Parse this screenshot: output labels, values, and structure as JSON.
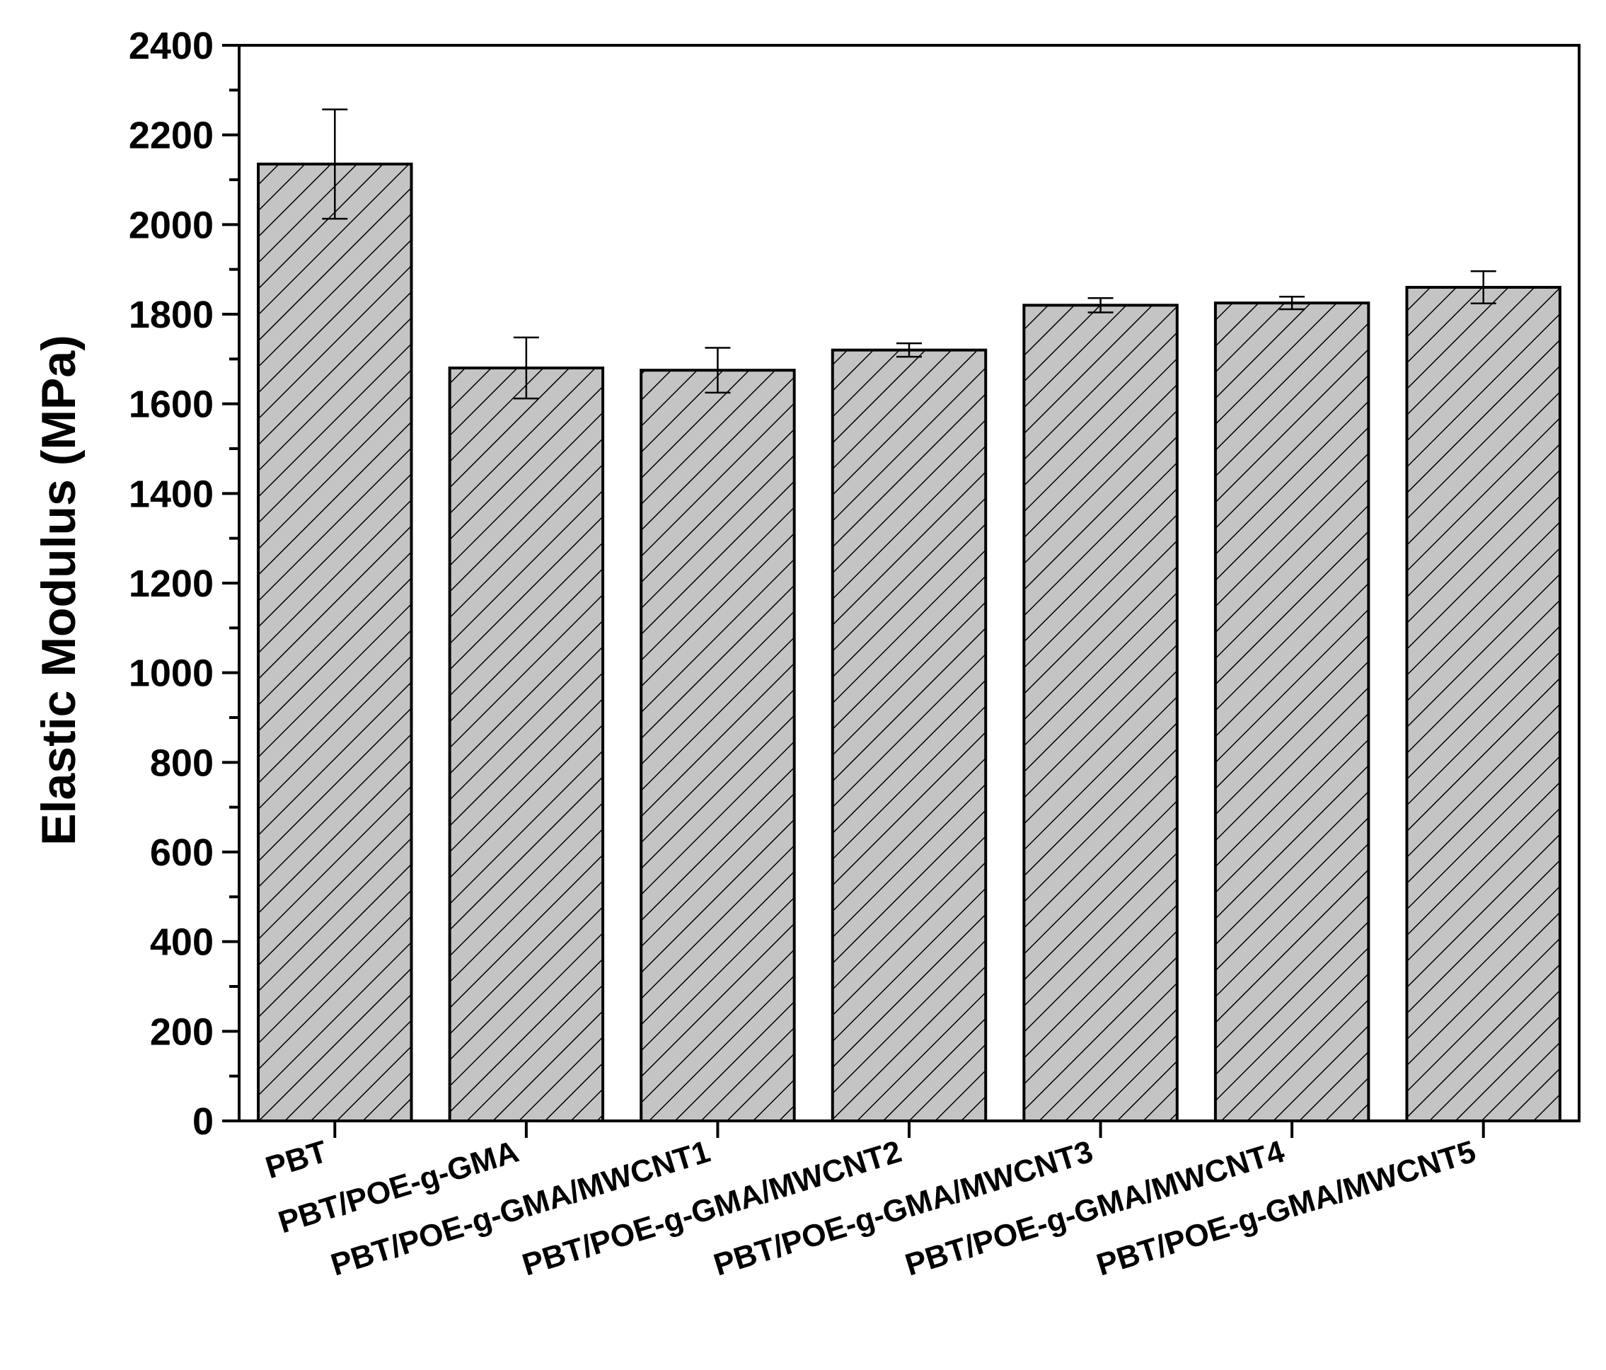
{
  "chart_data": {
    "type": "bar",
    "title": "",
    "xlabel": "",
    "ylabel": "Elastic Modulus (MPa)",
    "ylim": [
      0,
      2400
    ],
    "yticks": [
      0,
      200,
      400,
      600,
      800,
      1000,
      1200,
      1400,
      1600,
      1800,
      2000,
      2200,
      2400
    ],
    "y_minor_step": 100,
    "grid": false,
    "legend": "none",
    "categories": [
      "PBT",
      "PBT/POE-g-GMA",
      "PBT/POE-g-GMA/MWCNT1",
      "PBT/POE-g-GMA/MWCNT2",
      "PBT/POE-g-GMA/MWCNT3",
      "PBT/POE-g-GMA/MWCNT4",
      "PBT/POE-g-GMA/MWCNT5"
    ],
    "values": [
      2135,
      1680,
      1675,
      1720,
      1820,
      1825,
      1860
    ],
    "errors": [
      122,
      68,
      50,
      15,
      16,
      14,
      36
    ],
    "bar_fill": "#c4c4c4",
    "hatch": "diagonal",
    "line_color": "#000000"
  }
}
